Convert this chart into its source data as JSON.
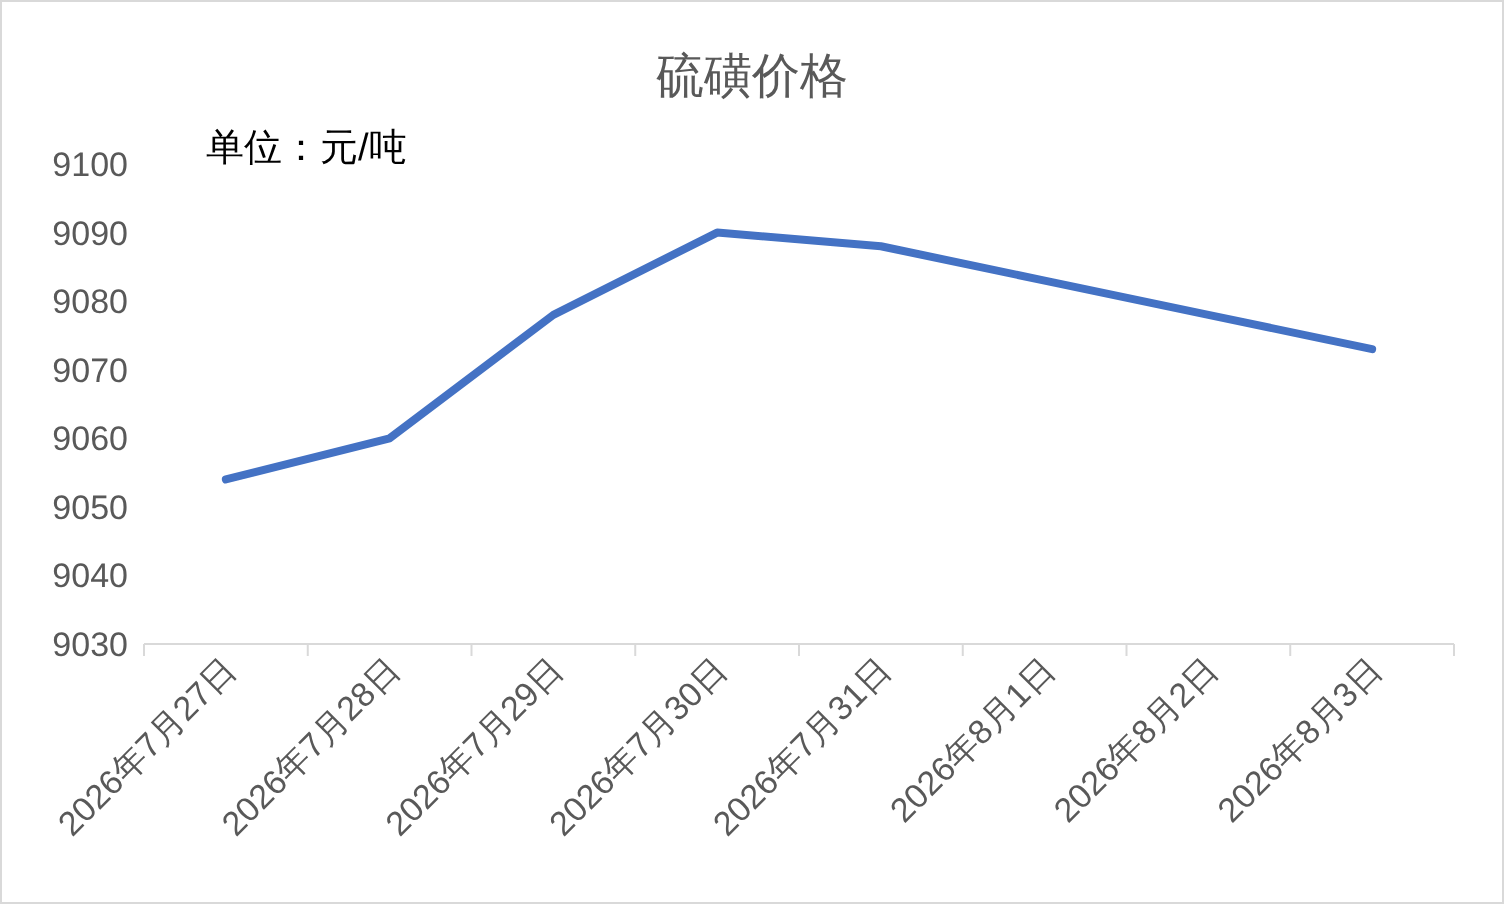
{
  "chart_data": {
    "type": "line",
    "title": "硫磺价格",
    "annotations": [
      "单位：元/吨"
    ],
    "categories": [
      "2026年7月27日",
      "2026年7月28日",
      "2026年7月29日",
      "2026年7月30日",
      "2026年7月31日",
      "2026年8月1日",
      "2026年8月2日",
      "2026年8月3日"
    ],
    "series": [
      {
        "color": "#4472c4",
        "values": [
          9054,
          9060,
          9078,
          9090,
          9088,
          9083,
          9078,
          9073
        ]
      }
    ],
    "ylim": [
      9030,
      9100
    ],
    "yticks": [
      9030,
      9040,
      9050,
      9060,
      9070,
      9080,
      9090,
      9100
    ],
    "grid": false,
    "marker": "none",
    "line_style": "solid"
  }
}
